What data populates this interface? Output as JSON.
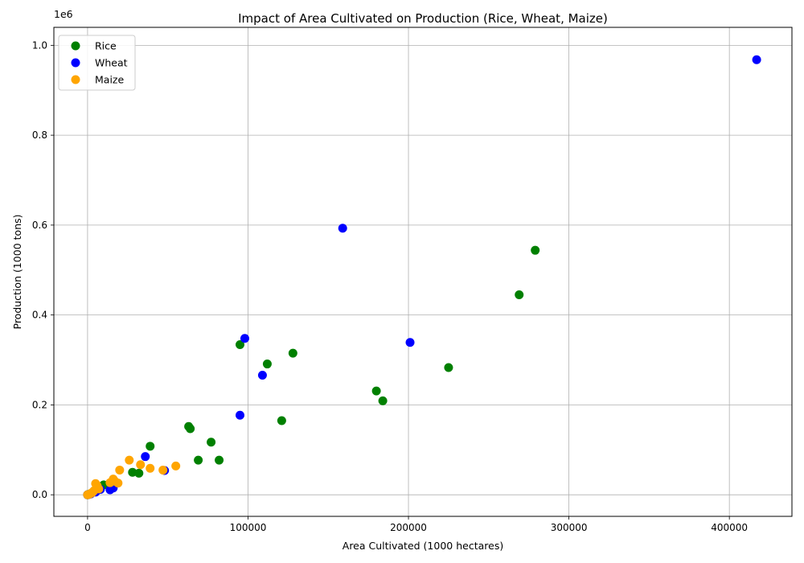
{
  "chart_data": {
    "type": "scatter",
    "title": "Impact of Area Cultivated on Production (Rice, Wheat, Maize)",
    "xlabel": "Area Cultivated (1000 hectares)",
    "ylabel": "Production (1000 tons)",
    "y_offset_label": "1e6",
    "xlim": [
      -21000,
      439000
    ],
    "ylim": [
      -0.048,
      1.04
    ],
    "y_scale_factor": 1000000,
    "x_ticks": [
      0,
      100000,
      200000,
      300000,
      400000
    ],
    "x_tick_labels": [
      "0",
      "100000",
      "200000",
      "300000",
      "400000"
    ],
    "y_ticks": [
      0.0,
      0.2,
      0.4,
      0.6,
      0.8,
      1.0
    ],
    "y_tick_labels": [
      "0.0",
      "0.2",
      "0.4",
      "0.6",
      "0.8",
      "1.0"
    ],
    "grid": true,
    "legend_position": "top-left",
    "series": [
      {
        "name": "Rice",
        "color": "#008000",
        "points": [
          [
            279000,
            544000
          ],
          [
            269000,
            445000
          ],
          [
            225000,
            283000
          ],
          [
            180000,
            231000
          ],
          [
            184000,
            209000
          ],
          [
            128000,
            315000
          ],
          [
            112000,
            291000
          ],
          [
            95000,
            334000
          ],
          [
            121000,
            165000
          ],
          [
            82000,
            77000
          ],
          [
            77000,
            117000
          ],
          [
            69000,
            77000
          ],
          [
            64000,
            147000
          ],
          [
            63000,
            152000
          ],
          [
            39000,
            108000
          ],
          [
            32000,
            48000
          ],
          [
            28000,
            50000
          ],
          [
            15000,
            22000
          ],
          [
            10000,
            22000
          ],
          [
            6000,
            10000
          ],
          [
            3000,
            5000
          ],
          [
            1000,
            1500
          ],
          [
            0,
            0
          ]
        ]
      },
      {
        "name": "Wheat",
        "color": "#0000ff",
        "points": [
          [
            417000,
            968000
          ],
          [
            159000,
            593000
          ],
          [
            98000,
            348000
          ],
          [
            109000,
            266000
          ],
          [
            201000,
            339000
          ],
          [
            95000,
            177000
          ],
          [
            36000,
            85000
          ],
          [
            48000,
            54000
          ],
          [
            14000,
            11000
          ],
          [
            16000,
            15000
          ],
          [
            8000,
            12000
          ],
          [
            5000,
            6000
          ],
          [
            2000,
            2000
          ],
          [
            1000,
            800
          ],
          [
            0,
            0
          ]
        ]
      },
      {
        "name": "Maize",
        "color": "#ffa500",
        "points": [
          [
            26000,
            77000
          ],
          [
            33000,
            67000
          ],
          [
            39000,
            59000
          ],
          [
            55000,
            64000
          ],
          [
            47000,
            55000
          ],
          [
            20000,
            55000
          ],
          [
            16000,
            35000
          ],
          [
            19000,
            26000
          ],
          [
            14000,
            27000
          ],
          [
            17000,
            30000
          ],
          [
            5000,
            25000
          ],
          [
            6000,
            20000
          ],
          [
            7000,
            13000
          ],
          [
            4000,
            9000
          ],
          [
            3000,
            5000
          ],
          [
            2000,
            3000
          ],
          [
            1000,
            1000
          ],
          [
            0,
            0
          ]
        ]
      }
    ]
  }
}
